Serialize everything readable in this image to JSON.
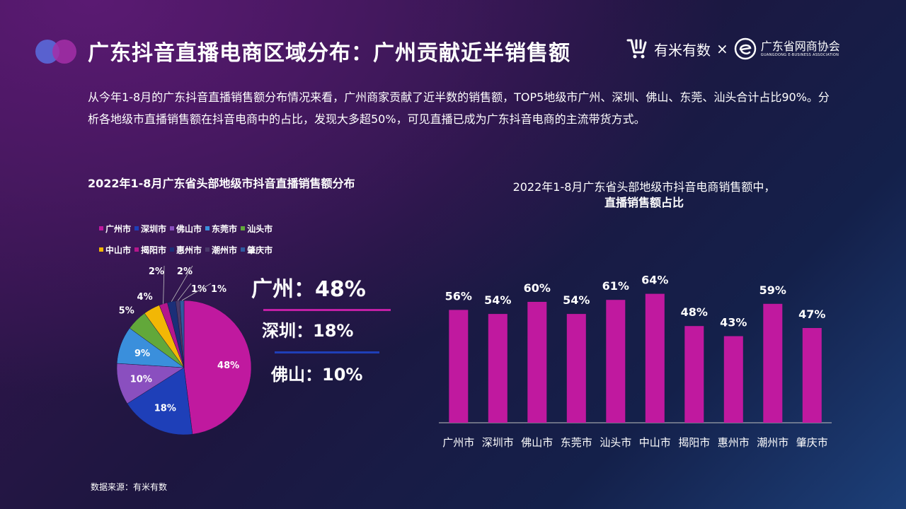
{
  "header": {
    "title": "广东抖音直播电商区域分布：广州贡献近半销售额",
    "logo_ymys_text": "有米有数",
    "logo_separator": "×",
    "logo_gec_text": "广东省网商协会",
    "logo_gec_subtext": "GUANGDONG E-BUSINESS ASSOCIATION"
  },
  "intro": "从今年1-8月的广东抖音直播销售额分布情况来看，广州商家贡献了近半数的销售额，TOP5地级市广州、深圳、佛山、东莞、汕头合计占比90%。分析各地级市直播销售额在抖音电商中的占比，发现大多超50%，可见直播已成为广东抖音电商的主流带货方式。",
  "highlights": {
    "guangzhou": "广州：48%",
    "shenzhen": "深圳：18%",
    "foshan": "佛山：10%"
  },
  "source": "数据来源：有米有数",
  "chart_data": [
    {
      "type": "pie",
      "title": "2022年1-8月广东省头部地级市抖音直播销售额分布",
      "legend_placement": "top",
      "categories": [
        "广州市",
        "深圳市",
        "佛山市",
        "东莞市",
        "汕头市",
        "中山市",
        "揭阳市",
        "惠州市",
        "潮州市",
        "肇庆市"
      ],
      "values": [
        48,
        18,
        10,
        9,
        5,
        4,
        2,
        2,
        1,
        1
      ],
      "labels": [
        "48%",
        "18%",
        "10%",
        "9%",
        "5%",
        "4%",
        "2%",
        "2%",
        "1%",
        "1%"
      ],
      "colors": [
        "#c0199f",
        "#1e3fb8",
        "#8a4fbf",
        "#3a8fdc",
        "#62a83a",
        "#f2b705",
        "#b5168c",
        "#1b2f78",
        "#4a3a6a",
        "#2f5aa0"
      ]
    },
    {
      "type": "bar",
      "title_line1": "2022年1-8月广东省头部地级市抖音电商销售额中，",
      "title_line2": "直播销售额占比",
      "categories": [
        "广州市",
        "深圳市",
        "佛山市",
        "东莞市",
        "汕头市",
        "中山市",
        "揭阳市",
        "惠州市",
        "潮州市",
        "肇庆市"
      ],
      "values": [
        56,
        54,
        60,
        54,
        61,
        64,
        48,
        43,
        59,
        47
      ],
      "labels": [
        "56%",
        "54%",
        "60%",
        "54%",
        "61%",
        "64%",
        "48%",
        "43%",
        "59%",
        "47%"
      ],
      "ylim": [
        0,
        80
      ],
      "color": "#c0199f"
    }
  ]
}
